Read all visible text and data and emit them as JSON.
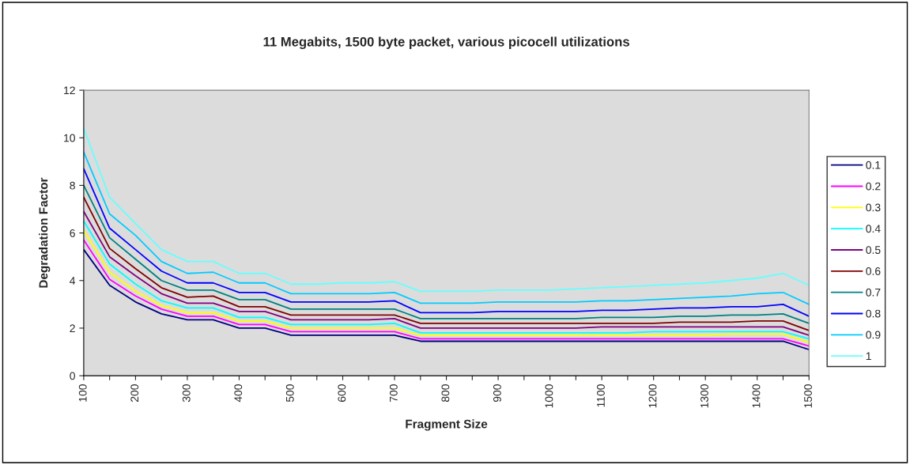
{
  "chart_data": {
    "type": "line",
    "title": "11 Megabits, 1500 byte packet, various picocell utilizations",
    "xlabel": "Fragment Size",
    "ylabel": "Degradation Factor",
    "x": [
      100,
      150,
      200,
      250,
      300,
      350,
      400,
      450,
      500,
      550,
      600,
      650,
      700,
      750,
      800,
      850,
      900,
      950,
      1000,
      1050,
      1100,
      1150,
      1200,
      1250,
      1300,
      1350,
      1400,
      1450,
      1500
    ],
    "series": [
      {
        "name": "0.1",
        "color": "#000080",
        "values": [
          5.3,
          3.8,
          3.1,
          2.6,
          2.35,
          2.35,
          2.0,
          2.0,
          1.7,
          1.7,
          1.7,
          1.7,
          1.7,
          1.45,
          1.45,
          1.45,
          1.45,
          1.45,
          1.45,
          1.45,
          1.45,
          1.45,
          1.45,
          1.45,
          1.45,
          1.45,
          1.45,
          1.45,
          1.1
        ]
      },
      {
        "name": "0.2",
        "color": "#ff00ff",
        "values": [
          5.7,
          4.05,
          3.35,
          2.8,
          2.5,
          2.5,
          2.15,
          2.15,
          1.85,
          1.85,
          1.85,
          1.85,
          1.85,
          1.55,
          1.55,
          1.55,
          1.55,
          1.55,
          1.55,
          1.55,
          1.55,
          1.55,
          1.55,
          1.55,
          1.55,
          1.55,
          1.55,
          1.55,
          1.25
        ]
      },
      {
        "name": "0.3",
        "color": "#ffff00",
        "values": [
          6.1,
          4.35,
          3.55,
          2.95,
          2.65,
          2.65,
          2.3,
          2.3,
          2.0,
          2.0,
          2.0,
          2.0,
          2.0,
          1.7,
          1.7,
          1.7,
          1.7,
          1.7,
          1.7,
          1.7,
          1.7,
          1.7,
          1.7,
          1.7,
          1.7,
          1.75,
          1.75,
          1.75,
          1.4
        ]
      },
      {
        "name": "0.4",
        "color": "#00ffff",
        "values": [
          6.5,
          4.7,
          3.85,
          3.15,
          2.85,
          2.85,
          2.45,
          2.45,
          2.15,
          2.15,
          2.15,
          2.15,
          2.2,
          1.8,
          1.8,
          1.8,
          1.8,
          1.8,
          1.8,
          1.8,
          1.8,
          1.8,
          1.85,
          1.85,
          1.85,
          1.85,
          1.85,
          1.85,
          1.55
        ]
      },
      {
        "name": "0.5",
        "color": "#800080",
        "values": [
          6.9,
          5.0,
          4.2,
          3.45,
          3.05,
          3.05,
          2.7,
          2.7,
          2.35,
          2.35,
          2.35,
          2.35,
          2.4,
          2.0,
          2.0,
          2.0,
          2.0,
          2.0,
          2.0,
          2.0,
          2.05,
          2.05,
          2.05,
          2.05,
          2.05,
          2.05,
          2.05,
          2.05,
          1.7
        ]
      },
      {
        "name": "0.6",
        "color": "#800000",
        "values": [
          7.5,
          5.35,
          4.5,
          3.7,
          3.3,
          3.35,
          2.9,
          2.9,
          2.55,
          2.55,
          2.55,
          2.55,
          2.55,
          2.2,
          2.2,
          2.2,
          2.2,
          2.2,
          2.2,
          2.2,
          2.2,
          2.2,
          2.2,
          2.25,
          2.25,
          2.25,
          2.3,
          2.3,
          1.9
        ]
      },
      {
        "name": "0.7",
        "color": "#008080",
        "values": [
          8.0,
          5.8,
          4.9,
          4.0,
          3.6,
          3.6,
          3.2,
          3.2,
          2.8,
          2.8,
          2.8,
          2.8,
          2.8,
          2.4,
          2.4,
          2.4,
          2.4,
          2.4,
          2.4,
          2.4,
          2.45,
          2.45,
          2.45,
          2.5,
          2.5,
          2.55,
          2.55,
          2.6,
          2.2
        ]
      },
      {
        "name": "0.8",
        "color": "#0000ff",
        "values": [
          8.7,
          6.2,
          5.3,
          4.4,
          3.9,
          3.9,
          3.5,
          3.5,
          3.1,
          3.1,
          3.1,
          3.1,
          3.15,
          2.65,
          2.65,
          2.65,
          2.7,
          2.7,
          2.7,
          2.7,
          2.75,
          2.75,
          2.8,
          2.85,
          2.85,
          2.9,
          2.9,
          3.0,
          2.5
        ]
      },
      {
        "name": "0.9",
        "color": "#00ccff",
        "values": [
          9.4,
          6.8,
          5.9,
          4.8,
          4.3,
          4.35,
          3.9,
          3.9,
          3.45,
          3.45,
          3.45,
          3.45,
          3.5,
          3.05,
          3.05,
          3.05,
          3.1,
          3.1,
          3.1,
          3.1,
          3.15,
          3.15,
          3.2,
          3.25,
          3.3,
          3.35,
          3.45,
          3.5,
          3.0
        ]
      },
      {
        "name": "1",
        "color": "#66ffff",
        "values": [
          10.4,
          7.5,
          6.4,
          5.3,
          4.8,
          4.8,
          4.3,
          4.3,
          3.85,
          3.85,
          3.9,
          3.9,
          3.95,
          3.55,
          3.55,
          3.55,
          3.6,
          3.6,
          3.6,
          3.65,
          3.7,
          3.75,
          3.8,
          3.85,
          3.9,
          4.0,
          4.1,
          4.3,
          3.8
        ]
      }
    ],
    "xlim": [
      100,
      1500
    ],
    "ylim": [
      0,
      12
    ],
    "xticks": [
      100,
      {
        "value": 150,
        "label": null
      },
      200,
      {
        "value": 250,
        "label": null
      },
      300,
      {
        "value": 350,
        "label": null
      },
      400,
      {
        "value": 450,
        "label": null
      },
      500,
      {
        "value": 550,
        "label": null
      },
      600,
      {
        "value": 650,
        "label": null
      },
      700,
      {
        "value": 750,
        "label": null
      },
      800,
      {
        "value": 850,
        "label": null
      },
      900,
      {
        "value": 950,
        "label": null
      },
      1000,
      {
        "value": 1050,
        "label": null
      },
      1100,
      {
        "value": 1150,
        "label": null
      },
      1200,
      {
        "value": 1250,
        "label": null
      },
      1300,
      {
        "value": 1350,
        "label": null
      },
      1400,
      {
        "value": 1450,
        "label": null
      },
      1500
    ],
    "yticks": [
      0,
      2,
      4,
      6,
      8,
      10,
      12
    ],
    "grid": false,
    "legend": "right",
    "marker": "none",
    "line_style": "solid"
  }
}
